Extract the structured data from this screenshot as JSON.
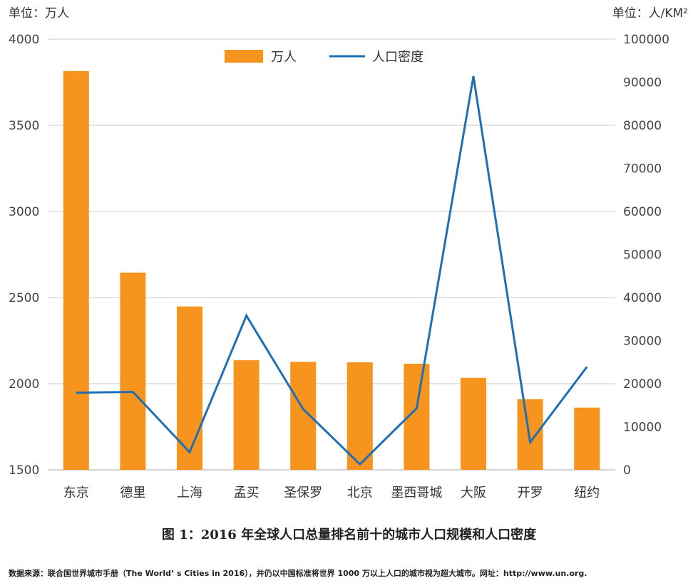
{
  "chart_data": {
    "type": "bar",
    "left_unit": "单位：万人",
    "right_unit": "单位：人/KM²",
    "categories": [
      "东京",
      "德里",
      "上海",
      "孟买",
      "圣保罗",
      "北京",
      "墨西哥城",
      "大阪",
      "开罗",
      "纽约"
    ],
    "series": [
      {
        "name": "万人",
        "type": "bar",
        "axis": "left",
        "values": [
          3815,
          2645,
          2448,
          2136,
          2127,
          2124,
          2116,
          2034,
          1910,
          1861
        ]
      },
      {
        "name": "人口密度",
        "type": "line",
        "axis": "right",
        "values": [
          17900,
          18100,
          4100,
          35800,
          14100,
          1300,
          14300,
          91400,
          6400,
          23900
        ]
      }
    ],
    "left_axis": {
      "min": 1500,
      "max": 4000,
      "ticks": [
        1500,
        2000,
        2500,
        3000,
        3500,
        4000
      ]
    },
    "right_axis": {
      "min": 0,
      "max": 100000,
      "ticks": [
        0,
        10000,
        20000,
        30000,
        40000,
        50000,
        60000,
        70000,
        80000,
        90000,
        100000
      ]
    },
    "grid": true,
    "legend_position": "top-center",
    "colors": {
      "bar": "#F7941D",
      "line": "#1F6FB5",
      "grid": "#C8C8C8"
    }
  },
  "caption": "图 1：2016 年全球人口总量排名前十的城市人口规模和人口密度",
  "source_note": "数据来源：联合国世界城市手册（The World’ s Cities in 2016），并仍以中国标准将世界 1000 万以上人口的城市视为超大城市。网址：http://www.un.org."
}
